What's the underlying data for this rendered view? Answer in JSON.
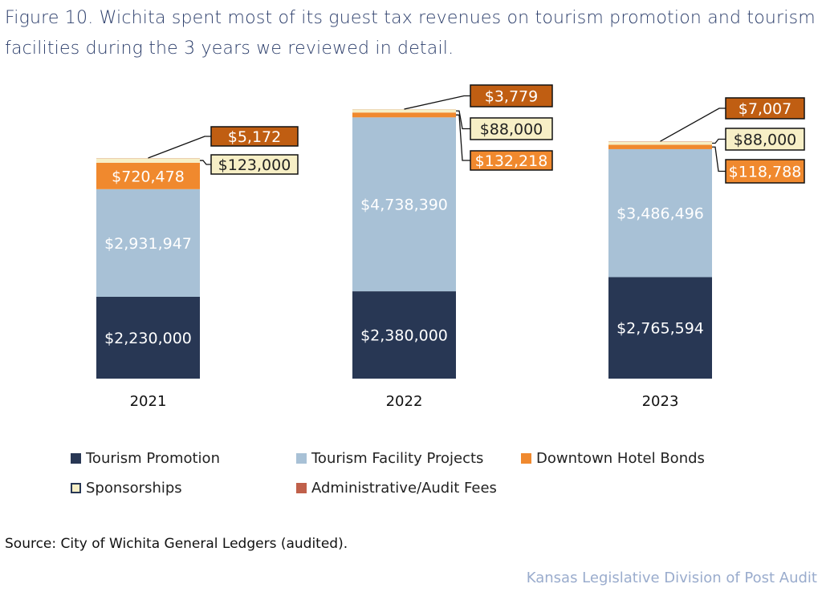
{
  "title": "Figure 10. Wichita spent most of its guest tax revenues on tourism promotion and tourism facilities during the 3 years we reviewed in detail.",
  "source": "Source: City of Wichita General Ledgers (audited).",
  "credit": "Kansas Legislative Division of Post Audit",
  "chart_data": {
    "type": "bar",
    "stacked": true,
    "categories": [
      "2021",
      "2022",
      "2023"
    ],
    "series": [
      {
        "name": "Tourism Promotion",
        "color": "#283754",
        "values": [
          2230000,
          2380000,
          2765594
        ],
        "labels": [
          "$2,230,000",
          "$2,380,000",
          "$2,765,594"
        ]
      },
      {
        "name": "Tourism Facility Projects",
        "color": "#a8c1d6",
        "values": [
          2931947,
          4738390,
          3486496
        ],
        "labels": [
          "$2,931,947",
          "$4,738,390",
          "$3,486,496"
        ]
      },
      {
        "name": "Downtown Hotel Bonds",
        "color": "#f0892e",
        "values": [
          720478,
          132218,
          118788
        ],
        "labels": [
          "$720,478",
          "$132,218",
          "$118,788"
        ]
      },
      {
        "name": "Sponsorships",
        "color": "#f7efc6",
        "values": [
          123000,
          88000,
          88000
        ],
        "labels": [
          "$123,000",
          "$88,000",
          "$88,000"
        ]
      },
      {
        "name": "Administrative/Audit Fees",
        "color": "#c0604a",
        "values": [
          5172,
          3779,
          7007
        ],
        "labels": [
          "$5,172",
          "$3,779",
          "$7,007"
        ]
      }
    ],
    "legend_position": "bottom",
    "grid": false
  }
}
